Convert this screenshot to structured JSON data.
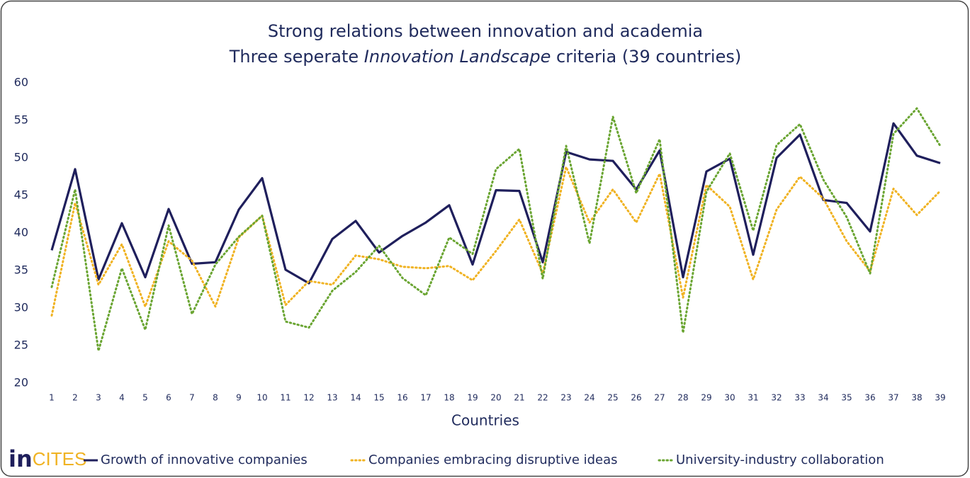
{
  "chart_data": {
    "type": "line",
    "title": "Strong relations between innovation and academia",
    "subtitle": [
      "Three seperate ",
      "Innovation Landscape",
      " criteria (39 countries)"
    ],
    "x_label": "Countries",
    "logo": [
      "in",
      "CITES"
    ],
    "categories": [
      1,
      2,
      3,
      4,
      5,
      6,
      7,
      8,
      9,
      10,
      11,
      12,
      13,
      14,
      15,
      16,
      17,
      18,
      19,
      20,
      21,
      22,
      23,
      24,
      25,
      26,
      27,
      28,
      29,
      30,
      31,
      32,
      33,
      34,
      35,
      36,
      37,
      38,
      39
    ],
    "ylim": [
      20,
      60
    ],
    "yticks": [
      20,
      25,
      30,
      35,
      40,
      45,
      50,
      55,
      60
    ],
    "grid": false,
    "legend": "bottom",
    "series": [
      {
        "name": "Growth of innovative companies",
        "color": "#1f1f5c",
        "style": "solid",
        "values": [
          37.7,
          48.5,
          33.8,
          41.3,
          34.1,
          43.2,
          35.9,
          36.1,
          43.1,
          47.3,
          35.1,
          33.3,
          39.2,
          41.6,
          37.4,
          39.6,
          41.4,
          43.7,
          35.8,
          45.7,
          45.6,
          36.1,
          50.8,
          49.8,
          49.6,
          45.8,
          51.0,
          34.1,
          48.2,
          49.9,
          37.1,
          50.0,
          53.1,
          44.4,
          44.0,
          40.2,
          54.6,
          50.3,
          49.3
        ]
      },
      {
        "name": "Companies embracing disruptive ideas",
        "color": "#f0b323",
        "style": "dotted",
        "values": [
          29.0,
          44.0,
          33.1,
          38.5,
          30.2,
          38.9,
          36.3,
          30.2,
          39.4,
          42.3,
          30.4,
          33.6,
          33.1,
          37.0,
          36.5,
          35.5,
          35.3,
          35.6,
          33.7,
          37.6,
          41.8,
          34.6,
          48.8,
          41.4,
          45.8,
          41.4,
          47.9,
          31.4,
          46.4,
          43.5,
          33.8,
          43.1,
          47.5,
          44.6,
          38.9,
          34.9,
          45.9,
          42.4,
          45.6
        ]
      },
      {
        "name": "University-industry collaboration",
        "color": "#6aa532",
        "style": "dotted",
        "values": [
          32.8,
          45.8,
          24.3,
          35.3,
          27.1,
          41.0,
          29.2,
          35.8,
          39.5,
          42.3,
          28.2,
          27.4,
          32.3,
          34.8,
          38.3,
          34.0,
          31.7,
          39.4,
          37.2,
          48.5,
          51.2,
          33.9,
          51.6,
          38.6,
          55.5,
          45.3,
          52.5,
          26.7,
          45.5,
          50.6,
          40.3,
          51.7,
          54.5,
          47.1,
          42.1,
          34.6,
          53.2,
          56.6,
          51.6
        ]
      }
    ]
  }
}
